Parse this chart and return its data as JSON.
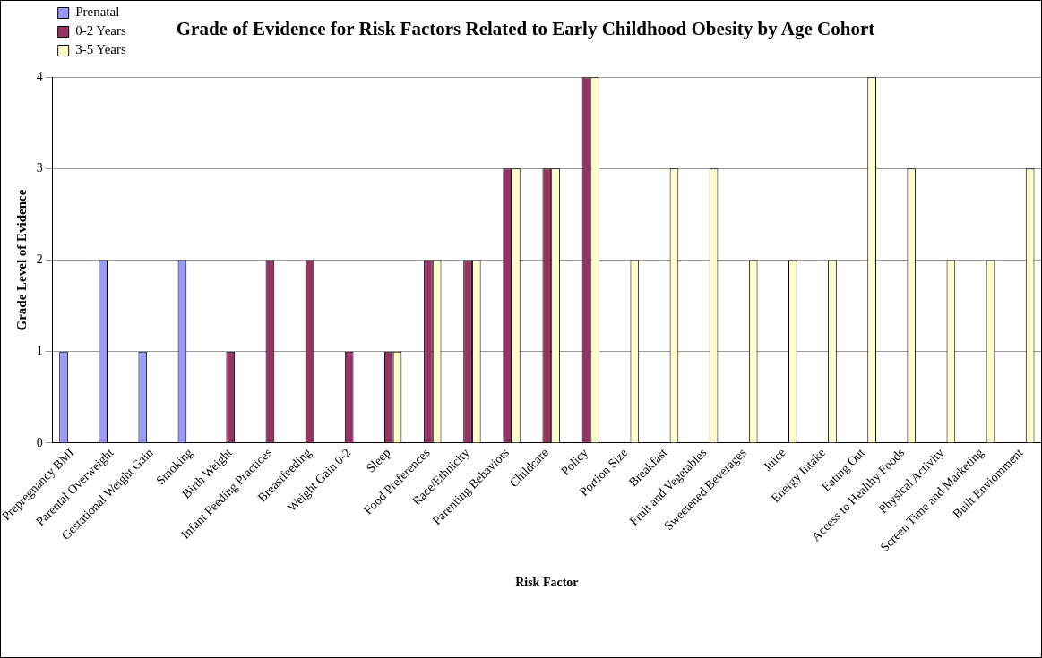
{
  "chart_data": {
    "type": "bar",
    "title": "Grade of Evidence for Risk Factors Related to Early Childhood Obesity by Age Cohort",
    "xlabel": "Risk Factor",
    "ylabel": "Grade Level of Evidence",
    "categories": [
      "Prepregnancy BMI",
      "Parental Overweight",
      "Gestational Weight Gain",
      "Smoking",
      "Birth Weight",
      "Infant Feeding Practices",
      "Breastfeeding",
      "Weight Gain 0-2",
      "Sleep",
      "Food Preferences",
      "Race/Ethnicity",
      "Parenting Behaviors",
      "Childcare",
      "Policy",
      "Portion Size",
      "Breakfast",
      "Fruit and Vegetables",
      "Sweetened Beverages",
      "Juice",
      "Energy Intake",
      "Eating Out",
      "Access to Healthy Foods",
      "Physical Activity",
      "Screen Time and Marketing",
      "Built Enviomment"
    ],
    "series": [
      {
        "name": "Prenatal",
        "color": "#9999ff",
        "values": [
          1,
          2,
          1,
          2,
          null,
          null,
          null,
          null,
          null,
          null,
          null,
          null,
          null,
          null,
          null,
          null,
          null,
          null,
          null,
          null,
          null,
          null,
          null,
          null,
          null
        ]
      },
      {
        "name": "0-2 Years",
        "color": "#993366",
        "values": [
          null,
          null,
          null,
          null,
          1,
          2,
          2,
          1,
          1,
          2,
          2,
          3,
          3,
          4,
          null,
          null,
          null,
          null,
          null,
          null,
          null,
          null,
          null,
          null,
          null
        ]
      },
      {
        "name": "3-5 Years",
        "color": "#ffffcc",
        "values": [
          null,
          null,
          null,
          null,
          null,
          null,
          null,
          null,
          1,
          2,
          2,
          3,
          3,
          4,
          2,
          3,
          3,
          2,
          2,
          2,
          4,
          3,
          2,
          2,
          3
        ]
      }
    ],
    "ylim": [
      0,
      4
    ],
    "yticks": [
      0,
      1,
      2,
      3,
      4
    ],
    "grid": "y",
    "legend": "top left"
  }
}
